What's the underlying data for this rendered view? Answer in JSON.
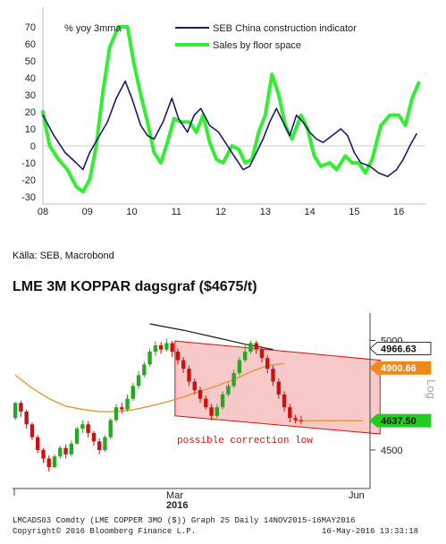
{
  "chart_data": [
    {
      "type": "line",
      "unit_label": "% yoy 3mma",
      "ylim": [
        -30,
        70
      ],
      "yticks": [
        70,
        60,
        50,
        40,
        30,
        20,
        10,
        0,
        -10,
        -20,
        -30
      ],
      "xlim": [
        2008,
        2016.6
      ],
      "xticks": [
        "08",
        "09",
        "10",
        "11",
        "12",
        "13",
        "14",
        "15",
        "16"
      ],
      "grid": false,
      "legend": "top-right",
      "series": [
        {
          "name": "SEB China construction indicator",
          "color": "#1a1a6e",
          "points": [
            [
              2008.0,
              18
            ],
            [
              2008.25,
              6
            ],
            [
              2008.5,
              -4
            ],
            [
              2008.75,
              -10
            ],
            [
              2008.9,
              -14
            ],
            [
              2009.05,
              -4
            ],
            [
              2009.25,
              5
            ],
            [
              2009.45,
              14
            ],
            [
              2009.65,
              28
            ],
            [
              2009.85,
              38
            ],
            [
              2010.0,
              28
            ],
            [
              2010.2,
              12
            ],
            [
              2010.35,
              6
            ],
            [
              2010.5,
              4
            ],
            [
              2010.7,
              14
            ],
            [
              2010.9,
              28
            ],
            [
              2011.05,
              16
            ],
            [
              2011.25,
              8
            ],
            [
              2011.4,
              18
            ],
            [
              2011.55,
              22
            ],
            [
              2011.75,
              12
            ],
            [
              2011.95,
              8
            ],
            [
              2012.15,
              0
            ],
            [
              2012.35,
              -8
            ],
            [
              2012.5,
              -14
            ],
            [
              2012.65,
              -12
            ],
            [
              2012.8,
              -4
            ],
            [
              2012.95,
              4
            ],
            [
              2013.1,
              14
            ],
            [
              2013.25,
              22
            ],
            [
              2013.4,
              14
            ],
            [
              2013.55,
              6
            ],
            [
              2013.7,
              18
            ],
            [
              2013.85,
              14
            ],
            [
              2014.0,
              8
            ],
            [
              2014.15,
              4
            ],
            [
              2014.3,
              2
            ],
            [
              2014.5,
              6
            ],
            [
              2014.7,
              10
            ],
            [
              2014.85,
              6
            ],
            [
              2015.0,
              -4
            ],
            [
              2015.15,
              -10
            ],
            [
              2015.35,
              -12
            ],
            [
              2015.55,
              -16
            ],
            [
              2015.75,
              -18
            ],
            [
              2015.95,
              -14
            ],
            [
              2016.1,
              -8
            ],
            [
              2016.25,
              0
            ],
            [
              2016.4,
              7
            ]
          ]
        },
        {
          "name": "Sales by floor space",
          "color": "#33ee33",
          "points": [
            [
              2008.0,
              20
            ],
            [
              2008.15,
              0
            ],
            [
              2008.35,
              -8
            ],
            [
              2008.55,
              -14
            ],
            [
              2008.75,
              -24
            ],
            [
              2008.9,
              -27
            ],
            [
              2009.05,
              -20
            ],
            [
              2009.2,
              0
            ],
            [
              2009.35,
              32
            ],
            [
              2009.5,
              58
            ],
            [
              2009.7,
              70
            ],
            [
              2009.9,
              70
            ],
            [
              2010.05,
              48
            ],
            [
              2010.2,
              30
            ],
            [
              2010.35,
              14
            ],
            [
              2010.5,
              -4
            ],
            [
              2010.65,
              -10
            ],
            [
              2010.8,
              2
            ],
            [
              2010.95,
              16
            ],
            [
              2011.1,
              14
            ],
            [
              2011.3,
              14
            ],
            [
              2011.45,
              8
            ],
            [
              2011.6,
              18
            ],
            [
              2011.75,
              2
            ],
            [
              2011.9,
              -8
            ],
            [
              2012.05,
              -10
            ],
            [
              2012.25,
              0
            ],
            [
              2012.4,
              -2
            ],
            [
              2012.55,
              -10
            ],
            [
              2012.7,
              -8
            ],
            [
              2012.85,
              8
            ],
            [
              2013.0,
              18
            ],
            [
              2013.15,
              42
            ],
            [
              2013.3,
              30
            ],
            [
              2013.45,
              12
            ],
            [
              2013.6,
              4
            ],
            [
              2013.8,
              18
            ],
            [
              2013.95,
              10
            ],
            [
              2014.1,
              -6
            ],
            [
              2014.25,
              -12
            ],
            [
              2014.45,
              -10
            ],
            [
              2014.6,
              -14
            ],
            [
              2014.8,
              -6
            ],
            [
              2014.95,
              -10
            ],
            [
              2015.1,
              -10
            ],
            [
              2015.25,
              -16
            ],
            [
              2015.4,
              -8
            ],
            [
              2015.6,
              12
            ],
            [
              2015.8,
              18
            ],
            [
              2016.0,
              18
            ],
            [
              2016.15,
              12
            ],
            [
              2016.3,
              28
            ],
            [
              2016.45,
              37
            ]
          ]
        }
      ]
    },
    {
      "type": "candlestick",
      "price_labels": [
        {
          "value": 5000,
          "text": "5000",
          "style": "axis"
        },
        {
          "value": 4966.63,
          "text": "4966.63",
          "style": "flag-white"
        },
        {
          "value": 4900.66,
          "text": "4900.66",
          "style": "flag-orange"
        },
        {
          "value": 4637.5,
          "text": "4637.50",
          "style": "flag-green"
        },
        {
          "value": 4500,
          "text": "4500",
          "style": "axis"
        }
      ],
      "ylim": [
        4320,
        5140
      ],
      "x_labels": [
        "Mar",
        "Jun"
      ],
      "year_label": "2016",
      "axis_note": "Log",
      "annotation": "possible correction low",
      "overlays": [
        {
          "name": "moving-average-long",
          "color": "#1a1a1a",
          "points": [
            [
              24,
              5090
            ],
            [
              30,
              5060
            ],
            [
              36,
              5025
            ],
            [
              41,
              4995
            ],
            [
              46,
              4970
            ]
          ]
        },
        {
          "name": "moving-average-mid",
          "color": "#ee8a1a",
          "points": [
            [
              0,
              4850
            ],
            [
              3,
              4790
            ],
            [
              6,
              4740
            ],
            [
              9,
              4705
            ],
            [
              12,
              4690
            ],
            [
              15,
              4680
            ],
            [
              18,
              4680
            ],
            [
              21,
              4688
            ],
            [
              24,
              4705
            ],
            [
              27,
              4725
            ],
            [
              30,
              4748
            ],
            [
              33,
              4775
            ],
            [
              36,
              4800
            ],
            [
              39,
              4830
            ],
            [
              42,
              4865
            ],
            [
              45,
              4895
            ],
            [
              48,
              4905
            ]
          ]
        },
        {
          "name": "last-price-line",
          "color": "#ee8a1a",
          "points": [
            [
              50,
              4637.5
            ],
            [
              62,
              4637.5
            ]
          ]
        }
      ],
      "channel": {
        "upper_start": 5010,
        "upper_end": 4920,
        "lower_start": 4660,
        "lower_end": 4575,
        "x_start": 29,
        "x_end": 64
      },
      "candles": [
        [
          4650,
          4720,
          4640,
          4725
        ],
        [
          4720,
          4680,
          4655,
          4730
        ],
        [
          4680,
          4620,
          4600,
          4690
        ],
        [
          4620,
          4560,
          4545,
          4630
        ],
        [
          4560,
          4500,
          4485,
          4570
        ],
        [
          4500,
          4460,
          4440,
          4510
        ],
        [
          4460,
          4420,
          4400,
          4475
        ],
        [
          4420,
          4470,
          4415,
          4480
        ],
        [
          4470,
          4510,
          4460,
          4520
        ],
        [
          4510,
          4480,
          4460,
          4525
        ],
        [
          4480,
          4530,
          4470,
          4545
        ],
        [
          4530,
          4600,
          4525,
          4610
        ],
        [
          4600,
          4620,
          4580,
          4640
        ],
        [
          4620,
          4580,
          4560,
          4635
        ],
        [
          4580,
          4540,
          4520,
          4590
        ],
        [
          4540,
          4500,
          4480,
          4555
        ],
        [
          4500,
          4560,
          4490,
          4570
        ],
        [
          4560,
          4640,
          4550,
          4650
        ],
        [
          4640,
          4700,
          4630,
          4715
        ],
        [
          4700,
          4690,
          4670,
          4720
        ],
        [
          4690,
          4740,
          4680,
          4760
        ],
        [
          4740,
          4800,
          4730,
          4815
        ],
        [
          4800,
          4850,
          4785,
          4870
        ],
        [
          4850,
          4900,
          4840,
          4915
        ],
        [
          4900,
          4960,
          4890,
          4975
        ],
        [
          4960,
          4990,
          4940,
          5010
        ],
        [
          4990,
          4970,
          4950,
          5005
        ],
        [
          4970,
          5000,
          4960,
          5020
        ],
        [
          5000,
          4960,
          4935,
          5010
        ],
        [
          4960,
          4920,
          4900,
          4975
        ],
        [
          4920,
          4880,
          4860,
          4935
        ],
        [
          4880,
          4820,
          4800,
          4895
        ],
        [
          4820,
          4780,
          4760,
          4835
        ],
        [
          4780,
          4740,
          4720,
          4795
        ],
        [
          4740,
          4700,
          4690,
          4755
        ],
        [
          4700,
          4660,
          4640,
          4715
        ],
        [
          4660,
          4700,
          4650,
          4715
        ],
        [
          4700,
          4760,
          4690,
          4775
        ],
        [
          4760,
          4800,
          4750,
          4815
        ],
        [
          4800,
          4860,
          4790,
          4875
        ],
        [
          4860,
          4920,
          4850,
          4935
        ],
        [
          4920,
          4960,
          4910,
          4990
        ],
        [
          4960,
          5000,
          4950,
          5010
        ],
        [
          5000,
          4970,
          4950,
          5010
        ],
        [
          4970,
          4930,
          4910,
          4985
        ],
        [
          4930,
          4880,
          4860,
          4945
        ],
        [
          4880,
          4820,
          4800,
          4895
        ],
        [
          4820,
          4760,
          4740,
          4835
        ],
        [
          4760,
          4700,
          4680,
          4775
        ],
        [
          4700,
          4650,
          4630,
          4715
        ],
        [
          4650,
          4640,
          4625,
          4665
        ],
        [
          4640,
          4635,
          4620,
          4660
        ]
      ]
    }
  ],
  "caption": {
    "source": "Källa: SEB, Macrobond",
    "lme_title": "LME 3M KOPPAR dagsgraf ($4675/t)"
  },
  "footer": {
    "line1": "LMCADS03 Comdty (LME COPPER   3MO ($)) Graph 25  Daily 14NOV2015-16MAY2016",
    "line2_left": "Copyright© 2016 Bloomberg Finance L.P.",
    "line2_right": "16-May-2016 13:33:18"
  },
  "colors": {
    "up_candle": "#22aa22",
    "down_candle": "#cc1111",
    "channel_fill": "#f7c9c9",
    "channel_line": "#dd1111",
    "annotation": "#dd1111"
  }
}
